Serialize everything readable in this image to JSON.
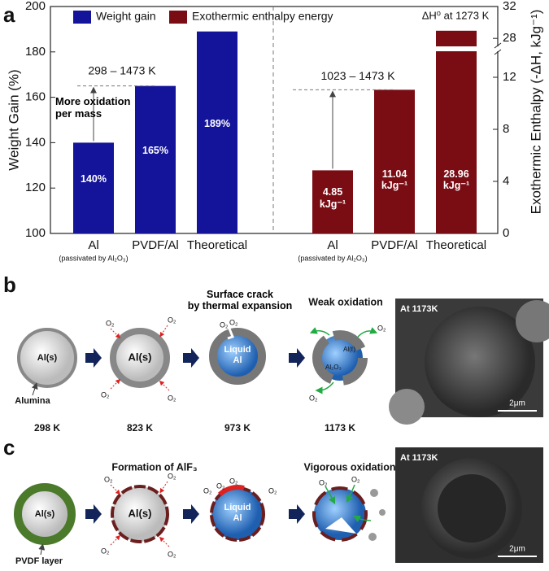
{
  "chart_data": {
    "type": "bar",
    "panel_label": "a",
    "categories": [
      "Al",
      "PVDF/Al",
      "Theoretical"
    ],
    "series": [
      {
        "name": "Weight gain",
        "color": "#14149a",
        "values": [
          140,
          165,
          189
        ],
        "value_labels": [
          "140%",
          "165%",
          "189%"
        ]
      },
      {
        "name": "Exothermic enthalpy energy",
        "color": "#7a0c14",
        "axis": "y2",
        "values": [
          4.85,
          11.04,
          28.96
        ],
        "value_labels": [
          "4.85\nkJg⁻¹",
          "11.04\nkJg⁻¹",
          "28.96\nkJg⁻¹"
        ]
      }
    ],
    "ylabel": "Weight Gain (%)",
    "y2label": "Exothermic Enthalpy (-ΔH, kJg⁻¹)",
    "ylim": [
      100,
      200
    ],
    "yticks": [
      100,
      120,
      140,
      160,
      180,
      200
    ],
    "y2lim": [
      0,
      32
    ],
    "y2ticks": [
      0,
      4,
      8,
      12,
      28,
      32
    ],
    "y2break": [
      14,
      27
    ],
    "legend": "top",
    "annotations": {
      "range_left": "298 – 1473 K",
      "note_left": "More oxidation\nper mass",
      "range_right": "1023 – 1473 K",
      "enthalpy_note": "ΔH⁰ at 1273 K",
      "passivated": "(passivated by Al₂O₃)"
    }
  },
  "panel_b": {
    "label": "b",
    "o2": "O₂",
    "core": "Al(s)",
    "shell": "Alumina",
    "crack_title": "Surface crack\nby thermal expansion",
    "weak_title": "Weak oxidation",
    "liquid": "Liquid\nAl",
    "oxide": "Al₂O₃",
    "liquid_core": "Al(ℓ)",
    "temperatures": [
      "298 K",
      "823 K",
      "973 K",
      "1173 K"
    ],
    "sem_label": "At 1173K",
    "scale": "2μm"
  },
  "panel_c": {
    "label": "c",
    "o2": "O₂",
    "core": "Al(s)",
    "layer": "PVDF layer",
    "fluoride_title": "Formation of AlF₃",
    "vigorous_title": "Vigorous oxidation",
    "liquid": "Liquid\nAl",
    "sem_label": "At 1173K",
    "scale": "2μm"
  }
}
